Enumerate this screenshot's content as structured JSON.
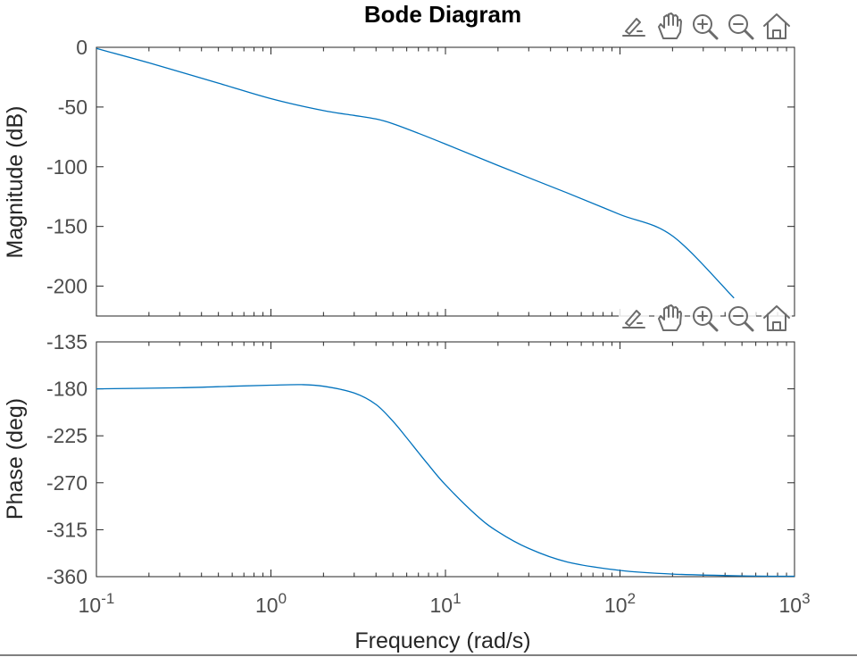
{
  "chart_data": {
    "type": "line",
    "title": "Bode Diagram",
    "xlabel": "Frequency  (rad/s)",
    "xscale": "log",
    "xlim": [
      0.1,
      1000
    ],
    "x_ticks": [
      {
        "base": "10",
        "exp": "-1"
      },
      {
        "base": "10",
        "exp": "0"
      },
      {
        "base": "10",
        "exp": "1"
      },
      {
        "base": "10",
        "exp": "2"
      },
      {
        "base": "10",
        "exp": "3"
      }
    ],
    "line_color": "#0072bd",
    "grid": false,
    "subplots": [
      {
        "name": "magnitude",
        "ylabel": "Magnitude (dB)",
        "ylim": [
          -225,
          0
        ],
        "yticks": [
          "0",
          "-50",
          "-100",
          "-150",
          "-200"
        ],
        "ytick_values": [
          0,
          -50,
          -100,
          -150,
          -200
        ],
        "x": [
          0.1,
          0.2,
          0.5,
          1,
          2,
          3,
          4,
          5,
          7,
          10,
          20,
          50,
          100,
          200,
          450
        ],
        "y": [
          -1,
          -13,
          -30,
          -43,
          -53,
          -57,
          -60,
          -64,
          -72,
          -81,
          -99,
          -122,
          -140,
          -158,
          -210
        ]
      },
      {
        "name": "phase",
        "ylabel": "Phase (deg)",
        "ylim": [
          -360,
          -135
        ],
        "yticks": [
          "-135",
          "-180",
          "-225",
          "-270",
          "-315",
          "-360"
        ],
        "ytick_values": [
          -135,
          -180,
          -225,
          -270,
          -315,
          -360
        ],
        "x": [
          0.1,
          0.3,
          0.6,
          1,
          1.5,
          2,
          3,
          4,
          5,
          6,
          7,
          8,
          10,
          15,
          20,
          30,
          50,
          100,
          200,
          500,
          1000
        ],
        "y": [
          -180,
          -179,
          -177.5,
          -176.5,
          -176,
          -177.5,
          -184,
          -195,
          -211,
          -227,
          -241,
          -253,
          -272,
          -301,
          -317,
          -333,
          -346,
          -354,
          -357.5,
          -359.2,
          -359.6
        ]
      }
    ]
  },
  "toolbar": {
    "icons": [
      "edit-icon",
      "pan-icon",
      "zoom-in-icon",
      "zoom-out-icon",
      "home-icon"
    ]
  }
}
